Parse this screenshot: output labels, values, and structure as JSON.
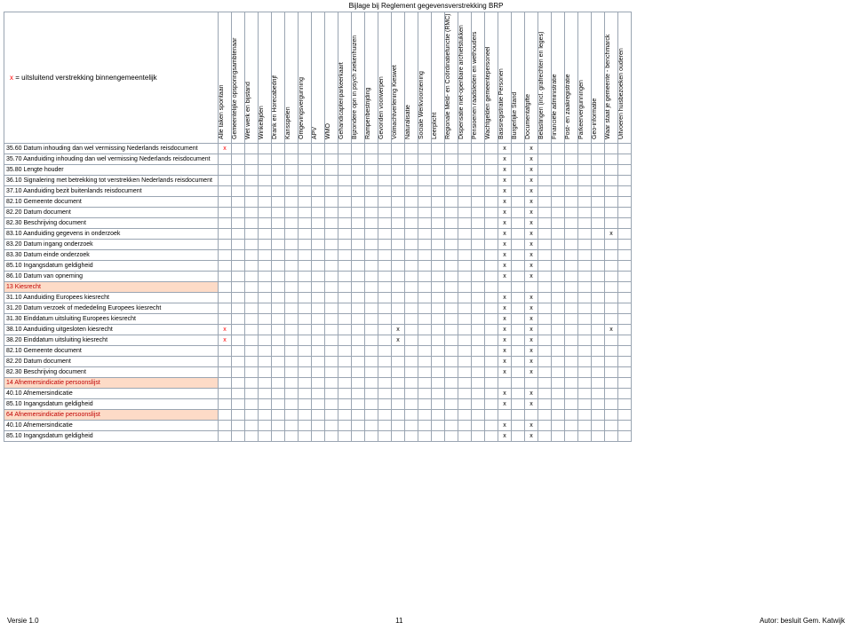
{
  "header": {
    "doc_title": "Bijlage bij Reglement gegevensverstrekking BRP"
  },
  "legend": {
    "x_symbol": "x",
    "legend_text": " = uitsluitend verstrekking binnengemeentelijk"
  },
  "footer": {
    "version": "Versie 1.0",
    "page_number": "11",
    "author": "Autor: besluit Gem. Katwijk"
  },
  "table": {
    "mark_symbol": "x",
    "columns": [
      "Alle taken spontaan",
      "Gemeentelijke opsporingsambtenaar",
      "Wet werk en bijstand",
      "Winkeltijden",
      "Drank en Horecabedrijf",
      "Kansspelen",
      "Omgevingsvergunning",
      "APV",
      "WMO",
      "Gehandicaptenparkeerkaart",
      "Bijzondere opn in psych ziekenhuizen",
      "Rampenbestrijding",
      "Gevonden voorwerpen",
      "Volmachtverlening Kieswet",
      "Naturalisatie",
      "Sociale Werkvoorziening",
      "Leerplicht",
      "Regionale Meld- en Coördinatiefunctie (RMC)",
      "Dispensatie niet-openbare archiefstukken",
      "Pensioenen raadsleden en wethouders",
      "Wachtgelden gemeentepersoneel",
      "Basisregistratie Personen",
      "Burgerlijke Stand",
      "Documentafgifte",
      "Belastingen (incl. grafrechten en leges)",
      "Financiële administratie",
      "Post- en zaakregistratie",
      "Parkeervergunningen",
      "Geo-informatie",
      "Waar staat je gemeente - benchmarck",
      "Uitvoeren huisbezoeken ouderen"
    ],
    "rows": [
      {
        "label": "35.60 Datum inhouding dan wel vermissing Nederlands reisdocument",
        "cat": false,
        "marks": [
          [
            0,
            "red"
          ],
          [
            21,
            ""
          ],
          [
            23,
            ""
          ]
        ]
      },
      {
        "label": "35.70 Aanduiding inhouding dan wel vermissing Nederlands reisdocument",
        "cat": false,
        "marks": [
          [
            21,
            ""
          ],
          [
            23,
            ""
          ]
        ]
      },
      {
        "label": "35.80 Lengte houder",
        "cat": false,
        "marks": [
          [
            21,
            ""
          ],
          [
            23,
            ""
          ]
        ]
      },
      {
        "label": "36.10 Signalering met betrekking tot verstrekken Nederlands reisdocument",
        "cat": false,
        "marks": [
          [
            21,
            ""
          ],
          [
            23,
            ""
          ]
        ]
      },
      {
        "label": "37.10 Aanduiding bezit buitenlands reisdocument",
        "cat": false,
        "marks": [
          [
            21,
            ""
          ],
          [
            23,
            ""
          ]
        ]
      },
      {
        "label": "82.10 Gemeente document",
        "cat": false,
        "marks": [
          [
            21,
            ""
          ],
          [
            23,
            ""
          ]
        ]
      },
      {
        "label": "82.20 Datum document",
        "cat": false,
        "marks": [
          [
            21,
            ""
          ],
          [
            23,
            ""
          ]
        ]
      },
      {
        "label": "82.30 Beschrijving document",
        "cat": false,
        "marks": [
          [
            21,
            ""
          ],
          [
            23,
            ""
          ]
        ]
      },
      {
        "label": "83.10 Aanduiding gegevens in onderzoek",
        "cat": false,
        "marks": [
          [
            21,
            ""
          ],
          [
            23,
            ""
          ],
          [
            29,
            ""
          ]
        ]
      },
      {
        "label": "83.20 Datum ingang onderzoek",
        "cat": false,
        "marks": [
          [
            21,
            ""
          ],
          [
            23,
            ""
          ]
        ]
      },
      {
        "label": "83.30 Datum einde onderzoek",
        "cat": false,
        "marks": [
          [
            21,
            ""
          ],
          [
            23,
            ""
          ]
        ]
      },
      {
        "label": "85.10 Ingangsdatum geldigheid",
        "cat": false,
        "marks": [
          [
            21,
            ""
          ],
          [
            23,
            ""
          ]
        ]
      },
      {
        "label": "86.10 Datum van opneming",
        "cat": false,
        "marks": [
          [
            21,
            ""
          ],
          [
            23,
            ""
          ]
        ]
      },
      {
        "label": "13 Kiesrecht",
        "cat": true,
        "marks": []
      },
      {
        "label": "31.10 Aanduiding Europees kiesrecht",
        "cat": false,
        "marks": [
          [
            21,
            ""
          ],
          [
            23,
            ""
          ]
        ]
      },
      {
        "label": "31.20 Datum verzoek of mededeling Europees kiesrecht",
        "cat": false,
        "marks": [
          [
            21,
            ""
          ],
          [
            23,
            ""
          ]
        ]
      },
      {
        "label": "31.30 Einddatum uitsluiting Europees kiesrecht",
        "cat": false,
        "marks": [
          [
            21,
            ""
          ],
          [
            23,
            ""
          ]
        ]
      },
      {
        "label": "38.10 Aanduiding uitgesloten kiesrecht",
        "cat": false,
        "marks": [
          [
            0,
            "red"
          ],
          [
            13,
            ""
          ],
          [
            21,
            ""
          ],
          [
            23,
            ""
          ],
          [
            29,
            ""
          ]
        ]
      },
      {
        "label": "38.20 Einddatum uitsluiting kiesrecht",
        "cat": false,
        "marks": [
          [
            0,
            "red"
          ],
          [
            13,
            ""
          ],
          [
            21,
            ""
          ],
          [
            23,
            ""
          ]
        ]
      },
      {
        "label": "82.10 Gemeente document",
        "cat": false,
        "marks": [
          [
            21,
            ""
          ],
          [
            23,
            ""
          ]
        ]
      },
      {
        "label": "82.20 Datum document",
        "cat": false,
        "marks": [
          [
            21,
            ""
          ],
          [
            23,
            ""
          ]
        ]
      },
      {
        "label": "82.30 Beschrijving document",
        "cat": false,
        "marks": [
          [
            21,
            ""
          ],
          [
            23,
            ""
          ]
        ]
      },
      {
        "label": "14 Afnemersindicatie persoonslijst",
        "cat": true,
        "marks": []
      },
      {
        "label": "40.10 Afnemersindicatie",
        "cat": false,
        "marks": [
          [
            21,
            ""
          ],
          [
            23,
            ""
          ]
        ]
      },
      {
        "label": "85.10 Ingangsdatum geldigheid",
        "cat": false,
        "marks": [
          [
            21,
            ""
          ],
          [
            23,
            ""
          ]
        ]
      },
      {
        "label": "64 Afnemersindicatie persoonslijst",
        "cat": true,
        "marks": []
      },
      {
        "label": "40.10 Afnemersindicatie",
        "cat": false,
        "marks": [
          [
            21,
            ""
          ],
          [
            23,
            ""
          ]
        ]
      },
      {
        "label": "85.10 Ingangsdatum geldigheid",
        "cat": false,
        "marks": [
          [
            21,
            ""
          ],
          [
            23,
            ""
          ]
        ]
      }
    ]
  }
}
